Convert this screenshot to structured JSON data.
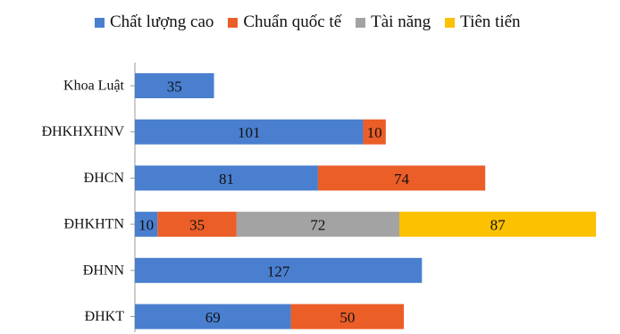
{
  "chart_data": {
    "type": "bar",
    "orientation": "horizontal",
    "stacked": true,
    "categories": [
      "Khoa Luật",
      "ĐHKHXHNV",
      "ĐHCN",
      "ĐHKHTN",
      "ĐHNN",
      "ĐHKT"
    ],
    "series": [
      {
        "name": "Chất lượng cao",
        "color": "#4a7fcf",
        "values": [
          35,
          101,
          81,
          10,
          127,
          69
        ],
        "labels": [
          "35",
          "101",
          "81",
          "10",
          "127",
          "69"
        ]
      },
      {
        "name": "Chuẩn quốc tế",
        "color": "#eb5e28",
        "values": [
          0,
          10,
          74,
          35,
          0,
          50
        ],
        "labels": [
          "",
          "10",
          "74",
          "35",
          "",
          "50"
        ]
      },
      {
        "name": "Tài năng",
        "color": "#a3a3a3",
        "values": [
          0,
          0,
          0,
          72,
          0,
          0
        ],
        "labels": [
          "",
          "",
          "",
          "72",
          "",
          ""
        ]
      },
      {
        "name": "Tiên tiến",
        "color": "#fcc100",
        "values": [
          0,
          0,
          0,
          87,
          0,
          0
        ],
        "labels": [
          "",
          "",
          "",
          "87",
          "",
          ""
        ]
      }
    ],
    "xlim": [
      0,
      204
    ],
    "grid": false,
    "legend_position": "top"
  }
}
